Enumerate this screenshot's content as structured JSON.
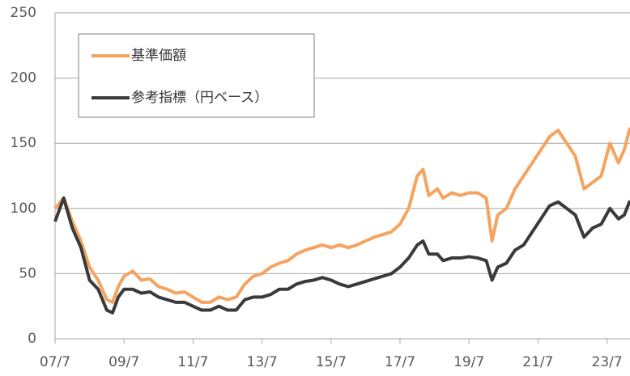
{
  "chart_data": {
    "type": "line",
    "x": [
      "07/7",
      "07/10",
      "08/1",
      "08/4",
      "08/7",
      "08/10",
      "09/1",
      "09/3",
      "09/5",
      "09/7",
      "09/10",
      "10/1",
      "10/4",
      "10/7",
      "10/10",
      "11/1",
      "11/4",
      "11/7",
      "11/10",
      "12/1",
      "12/4",
      "12/7",
      "12/10",
      "13/1",
      "13/4",
      "13/7",
      "13/10",
      "14/1",
      "14/4",
      "14/7",
      "14/10",
      "15/1",
      "15/4",
      "15/7",
      "15/10",
      "16/1",
      "16/4",
      "16/7",
      "16/10",
      "17/1",
      "17/4",
      "17/7",
      "17/10",
      "18/1",
      "18/3",
      "18/5",
      "18/8",
      "18/10",
      "19/1",
      "19/4",
      "19/7",
      "19/10",
      "20/1",
      "20/3",
      "20/5",
      "20/8",
      "20/11",
      "21/2",
      "21/5",
      "21/8",
      "21/11",
      "22/2",
      "22/5",
      "22/8",
      "22/11",
      "23/2",
      "23/5",
      "23/8",
      "23/11",
      "24/1",
      "24/3"
    ],
    "series": [
      {
        "name": "基準価額",
        "color": "#f4a460",
        "values": [
          100,
          108,
          90,
          75,
          55,
          45,
          30,
          28,
          40,
          48,
          52,
          45,
          46,
          40,
          38,
          35,
          36,
          32,
          28,
          28,
          32,
          30,
          32,
          42,
          48,
          50,
          55,
          58,
          60,
          65,
          68,
          70,
          72,
          70,
          72,
          70,
          72,
          75,
          78,
          80,
          82,
          88,
          100,
          125,
          130,
          110,
          115,
          108,
          112,
          110,
          112,
          112,
          108,
          75,
          95,
          100,
          115,
          125,
          135,
          145,
          155,
          160,
          150,
          140,
          115,
          120,
          125,
          150,
          135,
          145,
          162
        ]
      },
      {
        "name": "参考指標（円ベース）",
        "color": "#3a3a3a",
        "values": [
          90,
          108,
          85,
          70,
          45,
          38,
          22,
          20,
          32,
          38,
          38,
          35,
          36,
          32,
          30,
          28,
          28,
          25,
          22,
          22,
          25,
          22,
          22,
          30,
          32,
          32,
          34,
          38,
          38,
          42,
          44,
          45,
          47,
          45,
          42,
          40,
          42,
          44,
          46,
          48,
          50,
          55,
          62,
          72,
          75,
          65,
          65,
          60,
          62,
          62,
          63,
          62,
          60,
          45,
          55,
          58,
          68,
          72,
          82,
          92,
          102,
          105,
          100,
          95,
          78,
          85,
          88,
          100,
          92,
          95,
          106
        ]
      }
    ],
    "xlim": [
      "07/7",
      "24/3"
    ],
    "xticks": [
      "07/7",
      "09/7",
      "11/7",
      "13/7",
      "15/7",
      "17/7",
      "19/7",
      "21/7",
      "23/7"
    ],
    "ylim": [
      0,
      250
    ],
    "yticks": [
      0,
      50,
      100,
      150,
      200,
      250
    ],
    "grid": true
  }
}
